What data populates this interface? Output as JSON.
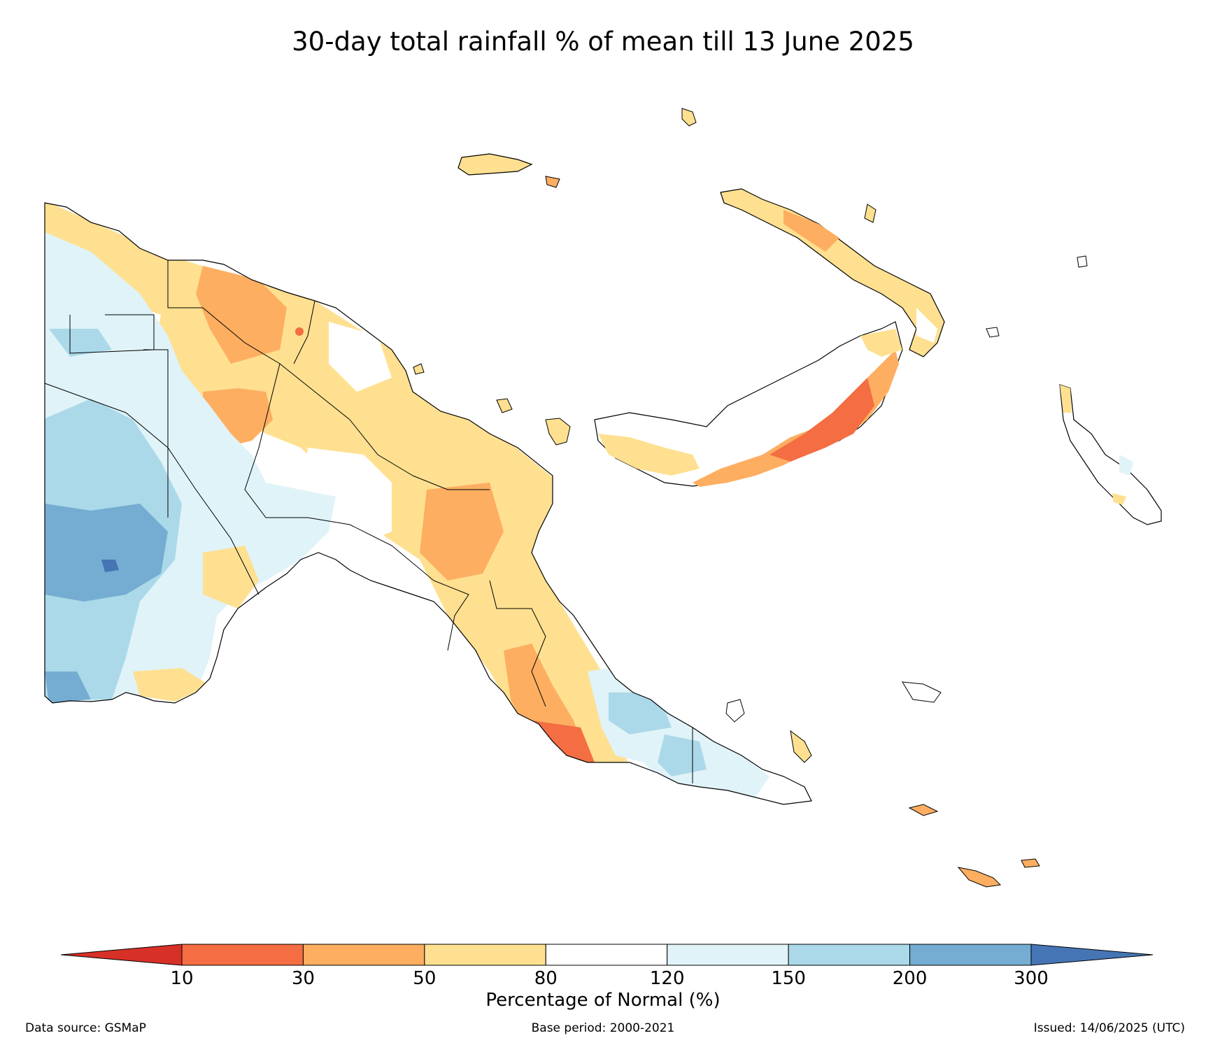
{
  "title": "30-day total rainfall % of mean till 13 June 2025",
  "colorbar": {
    "label": "Percentage of Normal (%)",
    "ticks": [
      "10",
      "30",
      "50",
      "80",
      "120",
      "150",
      "200",
      "300"
    ],
    "colors": {
      "below_10": "#d73027",
      "10_30": "#f46d43",
      "30_50": "#fdae61",
      "50_80": "#fee090",
      "80_120": "#ffffff",
      "120_150": "#e0f3f8",
      "150_200": "#abd9e9",
      "200_300": "#74add1",
      "above_300": "#4575b4"
    }
  },
  "footer": {
    "source": "Data source: GSMaP",
    "base_period": "Base period: 2000-2021",
    "issued": "Issued: 14/06/2025 (UTC)"
  }
}
